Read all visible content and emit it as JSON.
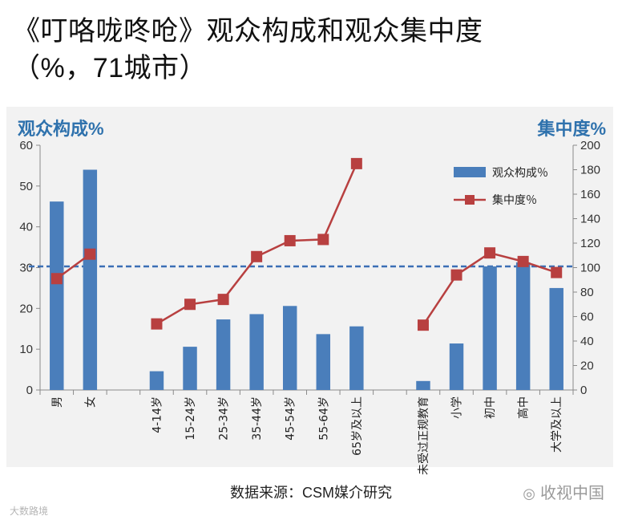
{
  "title": {
    "line1": "《叮咯咙咚呛》观众构成和观众集中度",
    "line2": "（%，71城市）"
  },
  "source": "数据来源：CSM媒介研究",
  "watermark_right": "收视中国",
  "watermark_right_icon": "wechat-icon",
  "watermark_left": "大数路境",
  "colors": {
    "bar": "#4a7ebb",
    "line": "#b84040",
    "reference": "#3b6fb5",
    "axis_title": "#2f72ad"
  },
  "chart_data": {
    "type": "bar",
    "title": "",
    "ylabel_left": "观众构成%",
    "ylabel_right": "集中度%",
    "ylim_left": [
      0,
      60
    ],
    "ylim_right": [
      0,
      200
    ],
    "yticks_left": [
      "0",
      "10",
      "20",
      "30",
      "40",
      "50",
      "60"
    ],
    "yticks_right": [
      "0",
      "20",
      "40",
      "60",
      "80",
      "100",
      "120",
      "140",
      "160",
      "180",
      "200"
    ],
    "categories": [
      "男",
      "女",
      "",
      "4-14岁",
      "15-24岁",
      "25-34岁",
      "35-44岁",
      "45-54岁",
      "55-64岁",
      "65岁及以上",
      "",
      "未受过正规教育",
      "小学",
      "初中",
      "高中",
      "大学及以上"
    ],
    "series": [
      {
        "name": "观众构成％",
        "type": "bar",
        "axis": "left",
        "values": [
          46.2,
          54,
          null,
          4.6,
          10.6,
          17.3,
          18.6,
          20.6,
          13.7,
          15.6,
          null,
          2.2,
          11.4,
          30.3,
          31.3,
          25.0
        ]
      },
      {
        "name": "集中度％",
        "type": "line",
        "axis": "right",
        "values": [
          91,
          111,
          null,
          54,
          70,
          74,
          109,
          122,
          123,
          185,
          null,
          53,
          94,
          112,
          105,
          96
        ]
      }
    ],
    "reference_line": {
      "axis": "right",
      "value": 101
    },
    "legend": [
      "观众构成％",
      "集中度％"
    ],
    "legend_position": "top-right",
    "grid": false
  }
}
